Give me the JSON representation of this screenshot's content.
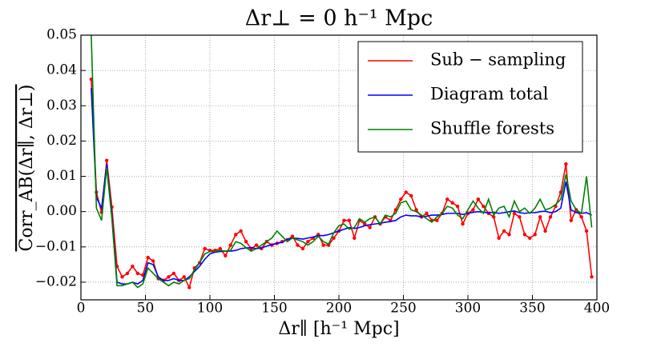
{
  "chart_data": {
    "type": "line",
    "title": "Δr⊥ = 0 h⁻¹ Mpc",
    "xlabel": "Δr∥ [h⁻¹ Mpc]",
    "ylabel": "Corr_AB(Δr∥, Δr⊥)",
    "x": [
      8,
      12,
      16,
      20,
      24,
      28,
      32,
      36,
      40,
      44,
      48,
      52,
      56,
      60,
      64,
      68,
      72,
      76,
      80,
      84,
      88,
      92,
      96,
      100,
      104,
      108,
      112,
      116,
      120,
      124,
      128,
      132,
      136,
      140,
      144,
      148,
      152,
      156,
      160,
      164,
      168,
      172,
      176,
      180,
      184,
      188,
      192,
      196,
      200,
      204,
      208,
      212,
      216,
      220,
      224,
      228,
      232,
      236,
      240,
      244,
      248,
      252,
      256,
      260,
      264,
      268,
      272,
      276,
      280,
      284,
      288,
      292,
      296,
      300,
      304,
      308,
      312,
      316,
      320,
      324,
      328,
      332,
      336,
      340,
      344,
      348,
      352,
      356,
      360,
      364,
      368,
      372,
      376,
      380,
      384,
      388,
      392,
      396
    ],
    "series": [
      {
        "name": "Sub − sampling",
        "color": "#ff0000",
        "markers": true,
        "values": [
          0.0375,
          0.0055,
          -0.0002,
          0.0145,
          0.0013,
          -0.0155,
          -0.0185,
          -0.0175,
          -0.0155,
          -0.0175,
          -0.018,
          -0.013,
          -0.014,
          -0.019,
          -0.0195,
          -0.0185,
          -0.0175,
          -0.0195,
          -0.0185,
          -0.0215,
          -0.016,
          -0.0145,
          -0.0105,
          -0.011,
          -0.011,
          -0.0105,
          -0.0125,
          -0.0095,
          -0.0065,
          -0.0055,
          -0.0085,
          -0.0105,
          -0.0095,
          -0.0105,
          -0.0085,
          -0.0095,
          -0.009,
          -0.0085,
          -0.008,
          -0.007,
          -0.0095,
          -0.0105,
          -0.0085,
          -0.0075,
          -0.0065,
          -0.0095,
          -0.0095,
          -0.0075,
          -0.0055,
          -0.0025,
          -0.0025,
          -0.0075,
          -0.0025,
          -0.0035,
          -0.0045,
          -0.0015,
          -0.0035,
          -0.0015,
          -0.0025,
          0.0005,
          0.0035,
          0.0055,
          0.0045,
          0.0005,
          -0.0015,
          -0.0005,
          -0.0025,
          -0.0025,
          -0.0005,
          0.0035,
          0.0025,
          0.0015,
          -0.0035,
          -0.0005,
          0.0005,
          0.0035,
          0.0015,
          -0.0005,
          -0.0015,
          -0.0075,
          -0.0055,
          -0.0065,
          -0.0005,
          -0.0015,
          -0.0065,
          -0.0075,
          -0.0065,
          -0.0015,
          -0.0055,
          -0.0015,
          0.0015,
          0.0055,
          0.0135,
          -0.0025,
          0.0005,
          -0.0015,
          -0.0055,
          -0.0185
        ]
      },
      {
        "name": "Diagram total",
        "color": "#0000ff",
        "markers": false,
        "values": [
          0.035,
          0.004,
          0.001,
          0.0135,
          -0.001,
          -0.02,
          -0.0205,
          -0.0205,
          -0.02,
          -0.0205,
          -0.0195,
          -0.0145,
          -0.015,
          -0.0185,
          -0.0195,
          -0.0195,
          -0.019,
          -0.0195,
          -0.0195,
          -0.0185,
          -0.017,
          -0.0155,
          -0.0135,
          -0.012,
          -0.0115,
          -0.0113,
          -0.0112,
          -0.0112,
          -0.011,
          -0.0105,
          -0.0103,
          -0.0102,
          -0.0105,
          -0.0103,
          -0.0098,
          -0.0093,
          -0.009,
          -0.0087,
          -0.0078,
          -0.0075,
          -0.0076,
          -0.0078,
          -0.0075,
          -0.0072,
          -0.0068,
          -0.0068,
          -0.0065,
          -0.006,
          -0.0055,
          -0.005,
          -0.0045,
          -0.0048,
          -0.0045,
          -0.004,
          -0.0037,
          -0.0035,
          -0.0033,
          -0.003,
          -0.0028,
          -0.0025,
          -0.0015,
          -0.001,
          -0.0012,
          -0.0012,
          -0.0015,
          -0.0013,
          -0.001,
          -0.001,
          -0.0008,
          -0.0005,
          -0.0005,
          -0.0005,
          -0.0008,
          -0.0005,
          -0.0002,
          0.0,
          -0.0002,
          -0.0003,
          -0.0002,
          -0.0005,
          -0.0003,
          0.0,
          0.0002,
          -0.0003,
          -0.0005,
          -0.0003,
          -0.0003,
          0.0,
          0.0001,
          -0.0003,
          0.0,
          0.001,
          0.0085,
          0.0005,
          -0.0003,
          -0.0005,
          -0.0003,
          -0.001
        ]
      },
      {
        "name": "Shuffle forests",
        "color": "#008000",
        "markers": false,
        "values": [
          0.05,
          0.001,
          -0.0025,
          0.0125,
          -0.002,
          -0.021,
          -0.021,
          -0.0205,
          -0.02,
          -0.0215,
          -0.0205,
          -0.016,
          -0.0175,
          -0.019,
          -0.02,
          -0.021,
          -0.02,
          -0.0205,
          -0.0195,
          -0.019,
          -0.0165,
          -0.0145,
          -0.012,
          -0.0113,
          -0.0113,
          -0.011,
          -0.0112,
          -0.011,
          -0.0085,
          -0.009,
          -0.0102,
          -0.0112,
          -0.0105,
          -0.0095,
          -0.0085,
          -0.0075,
          -0.0055,
          -0.007,
          -0.0085,
          -0.0075,
          -0.008,
          -0.0085,
          -0.0095,
          -0.0085,
          -0.007,
          -0.0085,
          -0.0092,
          -0.006,
          -0.004,
          -0.0035,
          -0.005,
          -0.0045,
          -0.002,
          -0.003,
          -0.002,
          -0.0015,
          -0.0035,
          -0.001,
          -0.0015,
          -0.0005,
          0.0025,
          0.003,
          0.0005,
          0.0,
          -0.001,
          -0.002,
          -0.003,
          -0.0015,
          -0.0005,
          0.0015,
          0.001,
          -0.001,
          -0.002,
          0.0005,
          0.003,
          0.001,
          -0.0005,
          0.0035,
          -0.001,
          0.001,
          0.0015,
          -0.0015,
          0.003,
          0.0,
          0.001,
          -0.0005,
          0.001,
          0.0035,
          0.0005,
          0.001,
          0.002,
          0.0035,
          0.0105,
          0.003,
          0.0005,
          -0.0005,
          0.01,
          -0.0045
        ]
      }
    ],
    "xlim": [
      0,
      400
    ],
    "xticks": [
      0,
      50,
      100,
      150,
      200,
      250,
      300,
      350,
      400
    ],
    "ylim": [
      -0.025,
      0.05
    ],
    "yticks": [
      {
        "value": -0.02,
        "label": "−0.02"
      },
      {
        "value": -0.01,
        "label": "−0.01"
      },
      {
        "value": 0,
        "label": "0.00"
      },
      0.01,
      0.02,
      0.03,
      0.04,
      0.05
    ],
    "grid": true,
    "legend": "upper right"
  }
}
